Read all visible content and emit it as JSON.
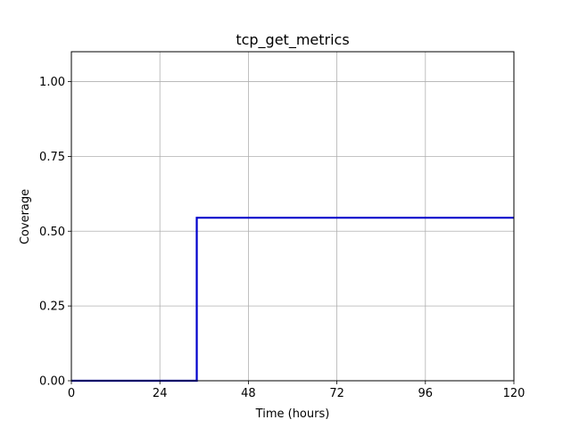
{
  "chart_data": {
    "type": "line",
    "title": "tcp_get_metrics",
    "xlabel": "Time (hours)",
    "ylabel": "Coverage",
    "xlim": [
      0,
      120
    ],
    "ylim": [
      0,
      1.1
    ],
    "xticks": [
      0,
      24,
      48,
      72,
      96,
      120
    ],
    "xtick_labels": [
      "0",
      "24",
      "48",
      "72",
      "96",
      "120"
    ],
    "yticks": [
      0,
      0.25,
      0.5,
      0.75,
      1.0
    ],
    "ytick_labels": [
      "0.00",
      "0.25",
      "0.50",
      "0.75",
      "1.00"
    ],
    "grid": true,
    "series": [
      {
        "color": "#0000cc",
        "step": "post",
        "x": [
          0,
          34,
          120
        ],
        "y": [
          0,
          0.545,
          0.545
        ]
      }
    ]
  }
}
